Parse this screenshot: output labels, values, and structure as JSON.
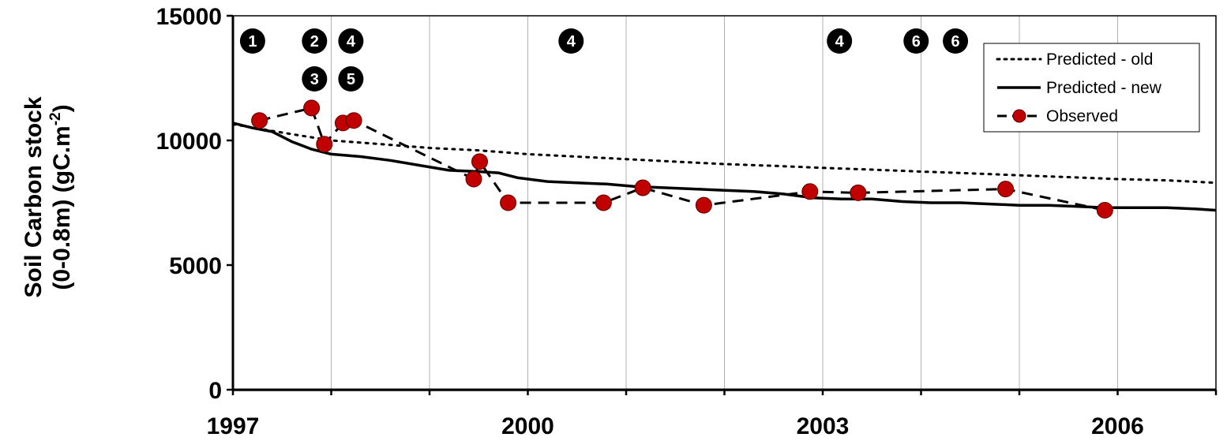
{
  "chart_data": {
    "type": "line",
    "ylabel_line1": "Soil Carbon stock",
    "ylabel_line2": "(0-0.8m)  (gC.m",
    "ylabel_sup": "-2",
    "ylabel_close": ")",
    "xlim": [
      1997,
      2007
    ],
    "ylim": [
      0,
      15000
    ],
    "x_ticks": [
      1997,
      2000,
      2003,
      2006
    ],
    "y_ticks": [
      0,
      5000,
      10000,
      15000
    ],
    "x_tick_labels": [
      "1997",
      "2000",
      "2003",
      "2006"
    ],
    "y_tick_labels": [
      "0",
      "5000",
      "10000",
      "15000"
    ],
    "vertical_gridlines": true,
    "horizontal_gridlines": false,
    "legend_position": "top-right",
    "legend": [
      "Predicted - old",
      "Predicted - new",
      "Observed"
    ],
    "series": [
      {
        "name": "Predicted - old",
        "style": "dotted",
        "color": "#000000",
        "x": [
          1997.0,
          1997.3,
          1997.6,
          1998.0,
          1998.5,
          1999.0,
          1999.5,
          2000.0,
          2000.5,
          2001.0,
          2001.5,
          2002.0,
          2002.5,
          2003.0,
          2003.5,
          2004.0,
          2004.5,
          2005.0,
          2005.5,
          2006.0,
          2006.5,
          2007.0
        ],
        "y": [
          10650,
          10450,
          10250,
          10000,
          9850,
          9700,
          9600,
          9450,
          9350,
          9250,
          9150,
          9050,
          8980,
          8900,
          8830,
          8750,
          8680,
          8600,
          8530,
          8450,
          8400,
          8300
        ]
      },
      {
        "name": "Predicted - new",
        "style": "solid",
        "color": "#000000",
        "x": [
          1997.0,
          1997.2,
          1997.4,
          1997.6,
          1997.8,
          1998.0,
          1998.3,
          1998.6,
          1998.9,
          1999.2,
          1999.5,
          1999.7,
          1999.9,
          2000.2,
          2000.5,
          2000.8,
          2001.1,
          2001.4,
          2001.7,
          2002.0,
          2002.3,
          2002.6,
          2002.9,
          2003.2,
          2003.5,
          2003.8,
          2004.1,
          2004.4,
          2004.7,
          2005.0,
          2005.3,
          2005.6,
          2005.9,
          2006.2,
          2006.5,
          2006.8,
          2007.0
        ],
        "y": [
          10700,
          10500,
          10350,
          9950,
          9650,
          9450,
          9350,
          9200,
          9000,
          8800,
          8750,
          8700,
          8500,
          8350,
          8300,
          8250,
          8150,
          8100,
          8050,
          8000,
          7950,
          7850,
          7700,
          7650,
          7650,
          7550,
          7500,
          7500,
          7450,
          7400,
          7400,
          7350,
          7300,
          7300,
          7300,
          7250,
          7200
        ]
      },
      {
        "name": "Observed",
        "style": "dashed",
        "color": "#000000",
        "marker_color": "#c00000",
        "x": [
          1997.27,
          1997.8,
          1997.93,
          1998.12,
          1998.23,
          1999.45,
          1999.51,
          1999.8,
          2000.77,
          2001.17,
          2001.79,
          2002.87,
          2003.36,
          2004.86,
          2005.87
        ],
        "y": [
          10800,
          11300,
          9850,
          10700,
          10800,
          8450,
          9150,
          7500,
          7500,
          8100,
          7400,
          7950,
          7900,
          8050,
          7200
        ]
      }
    ],
    "annotations": [
      {
        "label": "1",
        "x": 1997.2,
        "row": 1
      },
      {
        "label": "2",
        "x": 1997.83,
        "row": 1
      },
      {
        "label": "4",
        "x": 1998.2,
        "row": 1
      },
      {
        "label": "4",
        "x": 2000.44,
        "row": 1
      },
      {
        "label": "4",
        "x": 2003.17,
        "row": 1
      },
      {
        "label": "6",
        "x": 2003.95,
        "row": 1
      },
      {
        "label": "6",
        "x": 2004.35,
        "row": 1
      },
      {
        "label": "3",
        "x": 1997.83,
        "row": 2
      },
      {
        "label": "5",
        "x": 1998.2,
        "row": 2
      }
    ]
  }
}
